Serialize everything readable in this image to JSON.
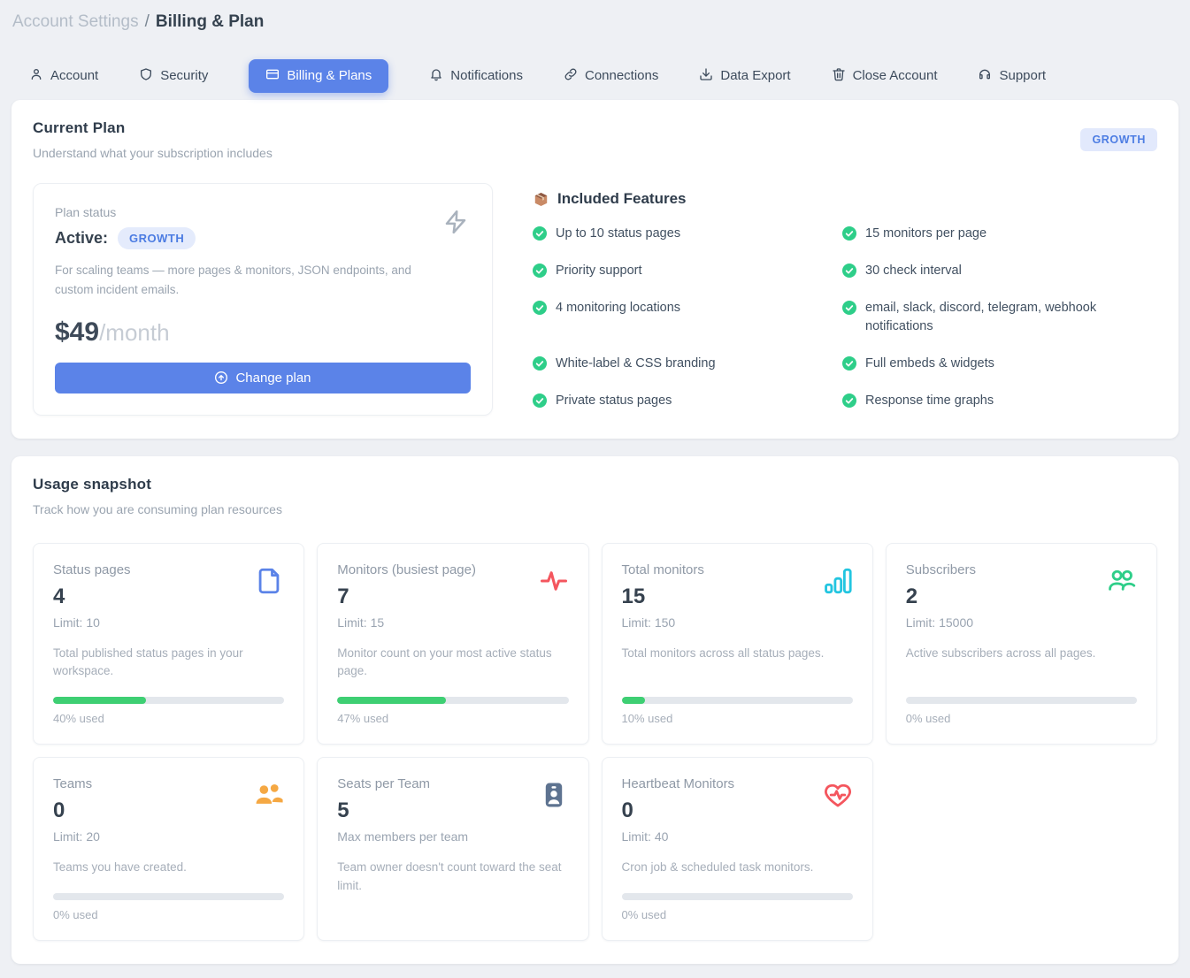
{
  "breadcrumb": {
    "section": "Account Settings",
    "separator": "/",
    "page": "Billing & Plan"
  },
  "tabs": [
    {
      "label": "Account",
      "icon": "user-icon",
      "active": false
    },
    {
      "label": "Security",
      "icon": "shield-icon",
      "active": false
    },
    {
      "label": "Billing & Plans",
      "icon": "credit-card-icon",
      "active": true
    },
    {
      "label": "Notifications",
      "icon": "bell-icon",
      "active": false
    },
    {
      "label": "Connections",
      "icon": "link-icon",
      "active": false
    },
    {
      "label": "Data Export",
      "icon": "download-icon",
      "active": false
    },
    {
      "label": "Close Account",
      "icon": "trash-icon",
      "active": false
    },
    {
      "label": "Support",
      "icon": "headset-icon",
      "active": false
    }
  ],
  "current_plan": {
    "title": "Current Plan",
    "subtitle": "Understand what your subscription includes",
    "plan_badge": "GROWTH",
    "status_card": {
      "label": "Plan status",
      "status": "Active:",
      "badge": "GROWTH",
      "description": "For scaling teams — more pages & monitors, JSON endpoints, and custom incident emails.",
      "price": "$49",
      "period": "/month",
      "button": "Change plan",
      "icon": "lightning-icon"
    },
    "features": {
      "title": "Included Features",
      "icon": "package-icon",
      "items": [
        "Up to 10 status pages",
        "15 monitors per page",
        "Priority support",
        "30 check interval",
        "4 monitoring locations",
        "email, slack, discord, telegram, webhook notifications",
        "White-label & CSS branding",
        "Full embeds & widgets",
        "Private status pages",
        "Response time graphs"
      ]
    }
  },
  "usage": {
    "title": "Usage snapshot",
    "subtitle": "Track how you are consuming plan resources",
    "cards": [
      {
        "label": "Status pages",
        "value": "4",
        "meta": "Limit: 10",
        "description": "Total published status pages in your workspace.",
        "percent": 40,
        "percent_label": "40% used",
        "icon": "file-icon"
      },
      {
        "label": "Monitors (busiest page)",
        "value": "7",
        "meta": "Limit: 15",
        "description": "Monitor count on your most active status page.",
        "percent": 47,
        "percent_label": "47% used",
        "icon": "activity-icon"
      },
      {
        "label": "Total monitors",
        "value": "15",
        "meta": "Limit: 150",
        "description": "Total monitors across all status pages.",
        "percent": 10,
        "percent_label": "10% used",
        "icon": "bar-chart-icon"
      },
      {
        "label": "Subscribers",
        "value": "2",
        "meta": "Limit: 15000",
        "description": "Active subscribers across all pages.",
        "percent": 0,
        "percent_label": "0% used",
        "icon": "users-icon"
      },
      {
        "label": "Teams",
        "value": "0",
        "meta": "Limit: 20",
        "description": "Teams you have created.",
        "percent": 0,
        "percent_label": "0% used",
        "icon": "users-filled-icon"
      },
      {
        "label": "Seats per Team",
        "value": "5",
        "meta": "Max members per team",
        "description": "Team owner doesn't count toward the seat limit.",
        "icon": "id-badge-icon"
      },
      {
        "label": "Heartbeat Monitors",
        "value": "0",
        "meta": "Limit: 40",
        "description": "Cron job & scheduled task monitors.",
        "percent": 0,
        "percent_label": "0% used",
        "icon": "heart-pulse-icon"
      }
    ]
  },
  "colors": {
    "accent_blue": "#5b83e8",
    "badge_bg": "#e2e9fc",
    "badge_text": "#4d7de3",
    "success_green": "#2ece89",
    "progress_green": "#3ecf73",
    "icon_red": "#f4565e",
    "icon_cyan": "#22c5e0",
    "icon_orange": "#f5a843",
    "icon_slate": "#5e7390",
    "page_bg": "#eef0f4"
  }
}
